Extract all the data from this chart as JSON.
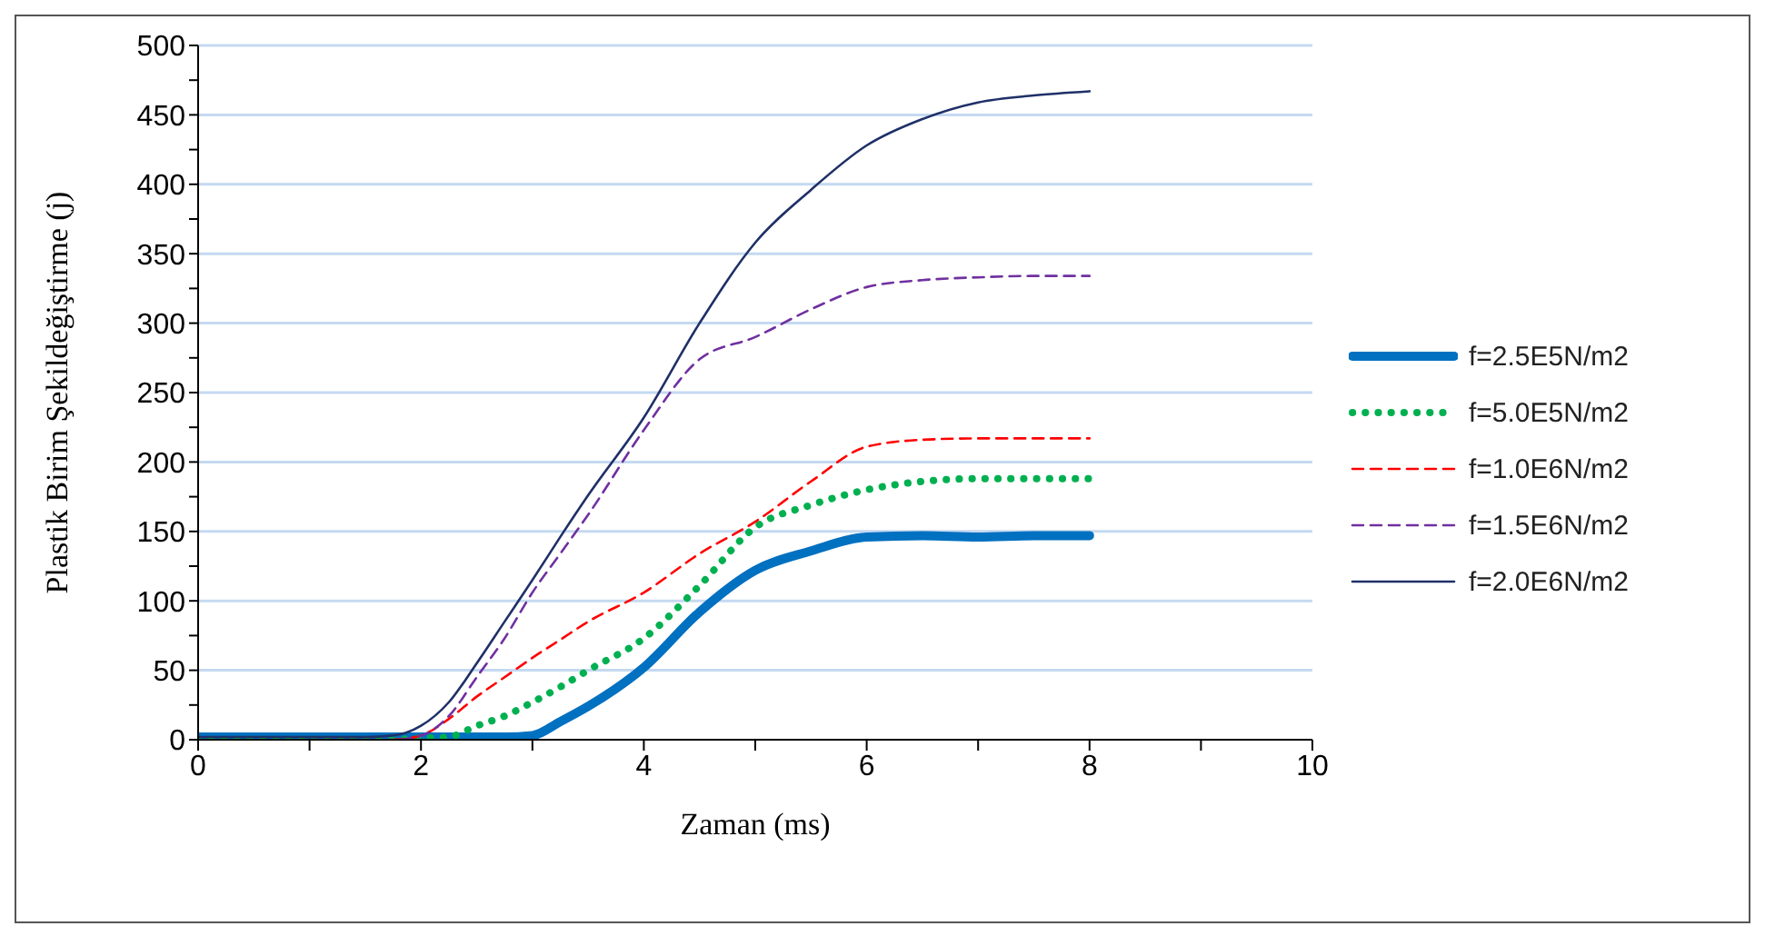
{
  "chart_data": {
    "type": "line",
    "xlabel": "Zaman (ms)",
    "ylabel": "Plastik Birim Şekildeğiştirme   (j)",
    "xlim": [
      0,
      10
    ],
    "xticks": [
      0,
      {
        "value": 1,
        "label": null
      },
      2,
      {
        "value": 3,
        "label": null
      },
      4,
      {
        "value": 5,
        "label": null
      },
      6,
      {
        "value": 7,
        "label": null
      },
      8,
      {
        "value": 9,
        "label": null
      },
      10
    ],
    "ylim": [
      0,
      500
    ],
    "yticks": [
      0,
      {
        "value": 25,
        "label": null
      },
      50,
      {
        "value": 75,
        "label": null
      },
      100,
      {
        "value": 125,
        "label": null
      },
      150,
      {
        "value": 175,
        "label": null
      },
      200,
      {
        "value": 225,
        "label": null
      },
      250,
      {
        "value": 275,
        "label": null
      },
      300,
      {
        "value": 325,
        "label": null
      },
      350,
      {
        "value": 375,
        "label": null
      },
      400,
      {
        "value": 425,
        "label": null
      },
      450,
      {
        "value": 475,
        "label": null
      },
      500
    ],
    "grid": "y",
    "legend": "right",
    "marker": "none",
    "x": [
      0,
      0.5,
      1,
      1.5,
      1.75,
      2,
      2.25,
      2.5,
      2.75,
      3,
      3.25,
      3.5,
      4,
      4.5,
      5,
      5.5,
      6,
      6.5,
      7,
      7.5,
      8
    ],
    "series": [
      {
        "name": "f=2.5E5N/m2",
        "color": "#0070c0",
        "line_style": "solid",
        "values": [
          2,
          2,
          2,
          2,
          2,
          2,
          2,
          2,
          2,
          3,
          13,
          24,
          52,
          92,
          122,
          136,
          146,
          147,
          146,
          147,
          147
        ]
      },
      {
        "name": "f=5.0E5N/m2",
        "color": "#00b050",
        "line_style": "dotted",
        "values": [
          0,
          0,
          0,
          0,
          0,
          1,
          2,
          10,
          17,
          27,
          38,
          50,
          73,
          111,
          153,
          169,
          180,
          186,
          188,
          188,
          188
        ]
      },
      {
        "name": "f=1.0E6N/m2",
        "color": "#ff0000",
        "line_style": "dashed",
        "values": [
          null,
          null,
          null,
          null,
          0,
          3,
          15,
          31,
          45,
          59,
          72,
          85,
          106,
          134,
          157,
          186,
          211,
          216,
          217,
          217,
          217
        ]
      },
      {
        "name": "f=1.5E6N/m2",
        "color": "#7030a0",
        "line_style": "dashed",
        "values": [
          null,
          null,
          0,
          0,
          0,
          3,
          17,
          45,
          73,
          106,
          134,
          162,
          223,
          274,
          290,
          310,
          326,
          331,
          333,
          334,
          334
        ]
      },
      {
        "name": "f=2.0E6N/m2",
        "color": "#1f3068",
        "line_style": "solid",
        "values": [
          2,
          2,
          2,
          2,
          3,
          10,
          27,
          55,
          85,
          115,
          146,
          176,
          232,
          300,
          358,
          396,
          428,
          447,
          459,
          464,
          467
        ]
      }
    ]
  }
}
